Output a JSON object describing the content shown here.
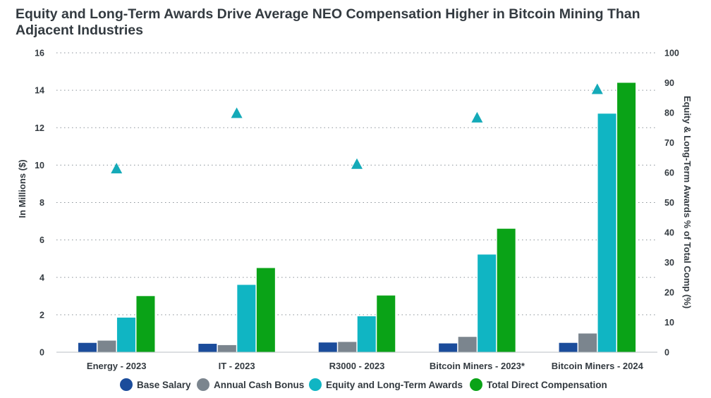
{
  "chart_data": {
    "type": "bar",
    "title": "Equity and Long-Term Awards Drive Average NEO Compensation Higher in Bitcoin Mining Than Adjacent Industries",
    "ylabel": "In Millions ($)",
    "y2label": "Equity & Long-Term Awards % of Total Comp (%)",
    "ylim": [
      0,
      16
    ],
    "y2lim": [
      0,
      100
    ],
    "yticks": [
      "0",
      "2",
      "4",
      "6",
      "8",
      "10",
      "12",
      "14",
      "16"
    ],
    "y2ticks": [
      "0",
      "10",
      "20",
      "30",
      "40",
      "50",
      "60",
      "70",
      "80",
      "90",
      "100"
    ],
    "grid": true,
    "legend_position": "bottom",
    "categories": [
      "Energy - 2023",
      "IT - 2023",
      "R3000 - 2023",
      "Bitcoin Miners - 2023*",
      "Bitcoin Miners - 2024"
    ],
    "series": [
      {
        "name": "Base Salary",
        "color": "#1b4c9b",
        "values": [
          0.5,
          0.45,
          0.52,
          0.47,
          0.5
        ]
      },
      {
        "name": "Annual Cash Bonus",
        "color": "#7b858e",
        "values": [
          0.62,
          0.38,
          0.55,
          0.82,
          1.0
        ]
      },
      {
        "name": "Equity and Long-Term Awards",
        "color": "#10b5c3",
        "values": [
          1.85,
          3.6,
          1.92,
          5.22,
          12.75
        ]
      },
      {
        "name": "Total Direct Compensation",
        "color": "#0aa317",
        "values": [
          3.0,
          4.5,
          3.03,
          6.6,
          14.4
        ]
      }
    ],
    "secondary_series": {
      "name": "Equity & Long-Term Awards % of Total Comp",
      "marker": "triangle",
      "color": "#14aab8",
      "axis": "right",
      "values": [
        61.5,
        80,
        63,
        78.5,
        88
      ]
    }
  }
}
